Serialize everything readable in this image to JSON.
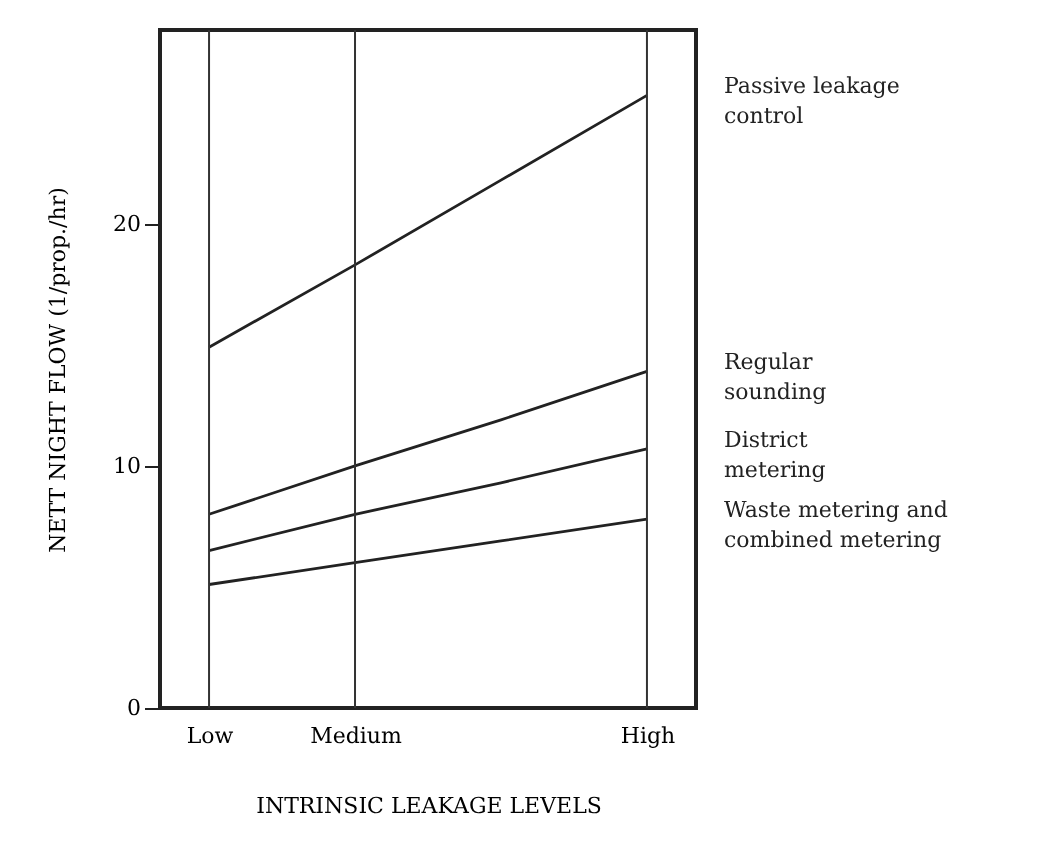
{
  "chart_data": {
    "type": "line",
    "xlabel": "INTRINSIC LEAKAGE LEVELS",
    "ylabel": "NETT NIGHT FLOW (1/prop./hr)",
    "categories": [
      "Low",
      "Medium",
      null,
      "High"
    ],
    "series": [
      {
        "name": "Passive leakage\ncontrol",
        "color": "#222222",
        "values": [
          14.9,
          18.3,
          21.8,
          25.3
        ]
      },
      {
        "name": "Regular\nsounding",
        "color": "#222222",
        "values": [
          8.0,
          10.0,
          11.9,
          13.9
        ]
      },
      {
        "name": "District\nmetering",
        "color": "#222222",
        "values": [
          6.5,
          8.0,
          9.3,
          10.7
        ]
      },
      {
        "name": "Waste metering and\ncombined metering",
        "color": "#222222",
        "values": [
          5.1,
          6.0,
          6.9,
          7.8
        ]
      }
    ],
    "ylim": [
      0,
      28
    ],
    "yticks": [
      0,
      10,
      20
    ],
    "grid": "x",
    "marker": "none",
    "line_style": "solid"
  }
}
